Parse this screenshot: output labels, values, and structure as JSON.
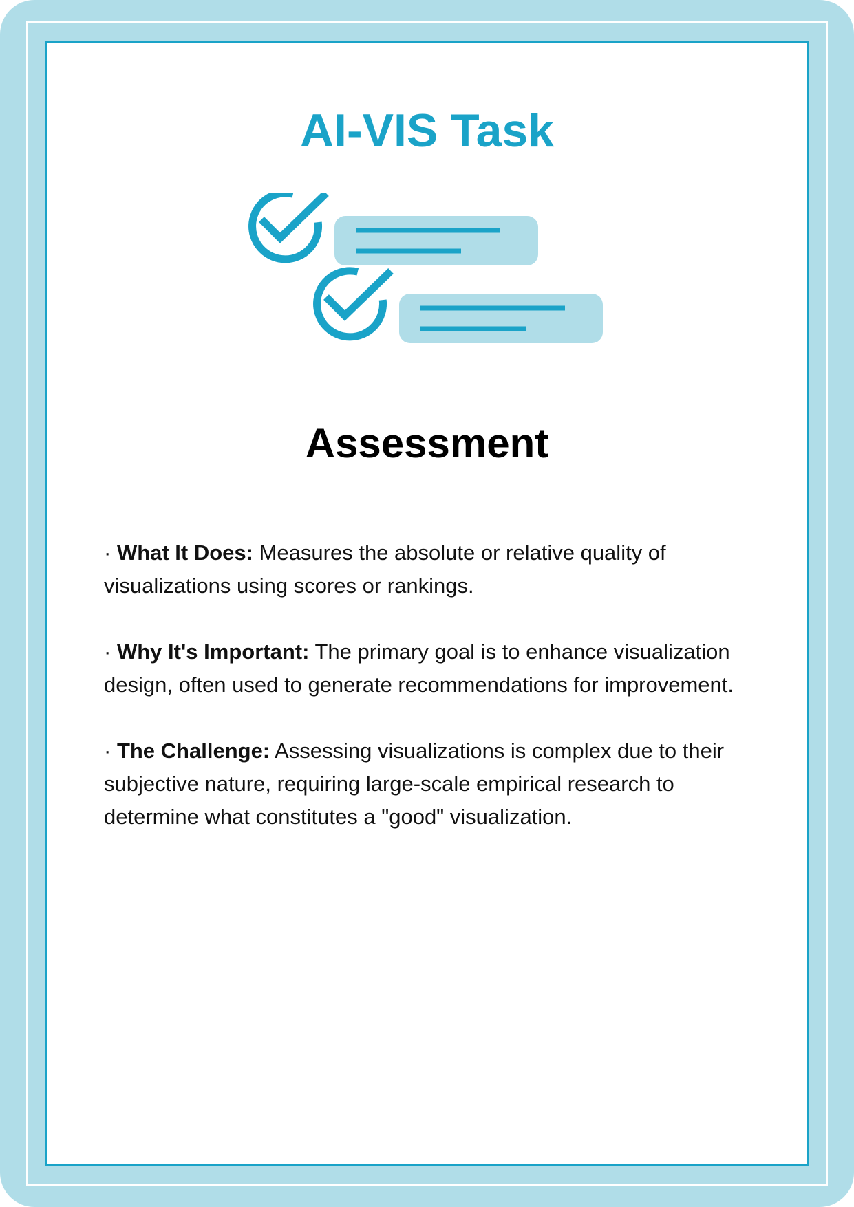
{
  "card": {
    "title": "AI-VIS Task",
    "icon": "checklist-icon",
    "heading": "Assessment",
    "bullets": [
      {
        "marker": "· ",
        "label": "What It Does:",
        "text": " Measures the absolute or relative quality of visualizations using scores or rankings."
      },
      {
        "marker": "· ",
        "label": "Why It's Important:",
        "text": " The primary goal is to enhance visualiza­tion design, often used to generate recommendations for improvement."
      },
      {
        "marker": "· ",
        "label": "The Challenge:",
        "text": " Assessing visualizations is complex due to their subjective nature, requiring large-scale empirical research to determine what constitutes a \"good\" visualization."
      }
    ]
  },
  "colors": {
    "accent": "#1aa3c8",
    "frame": "#b0dde8",
    "text": "#111111"
  }
}
